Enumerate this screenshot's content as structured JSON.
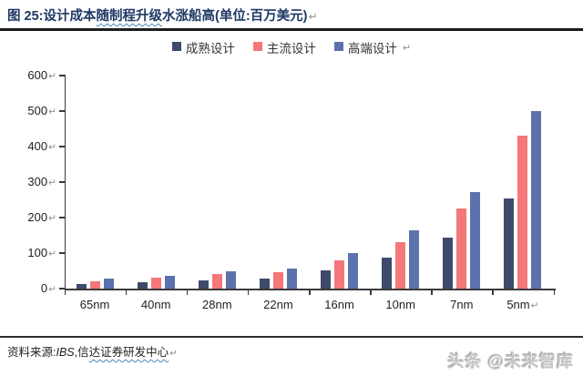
{
  "marks": {
    "return_mark": "↵"
  },
  "header": {
    "title_prefix": "图 25:设计成本",
    "title_wavy": "随制程升级",
    "title_suffix": "水涨船高(单位:百万美元)"
  },
  "chart_data": {
    "type": "bar",
    "title": "设计成本随制程升级水涨船高",
    "unit": "百万美元",
    "categories": [
      "65nm",
      "40nm",
      "28nm",
      "22nm",
      "16nm",
      "10nm",
      "7nm",
      "5nm"
    ],
    "series": [
      {
        "name": "成熟设计",
        "color": "#3E4A6B",
        "values": [
          14,
          18,
          24,
          28,
          50,
          88,
          143,
          255
        ]
      },
      {
        "name": "主流设计",
        "color": "#F57779",
        "values": [
          21,
          31,
          40,
          45,
          79,
          130,
          225,
          430
        ]
      },
      {
        "name": "高端设计",
        "color": "#5C72AC",
        "values": [
          27,
          37,
          49,
          57,
          100,
          164,
          272,
          500
        ]
      }
    ],
    "ylim": [
      0,
      600
    ],
    "yticks": [
      0,
      100,
      200,
      300,
      400,
      500,
      600
    ],
    "xlabel": "",
    "ylabel": "",
    "grid": false,
    "legend_position": "top"
  },
  "footer": {
    "source_label": "资料来源:",
    "source_ibs": "IBS",
    "source_comma": ",",
    "source_plain": "信",
    "source_wavy": "达证券研发中心",
    "watermark": "头条 @未来智库"
  }
}
